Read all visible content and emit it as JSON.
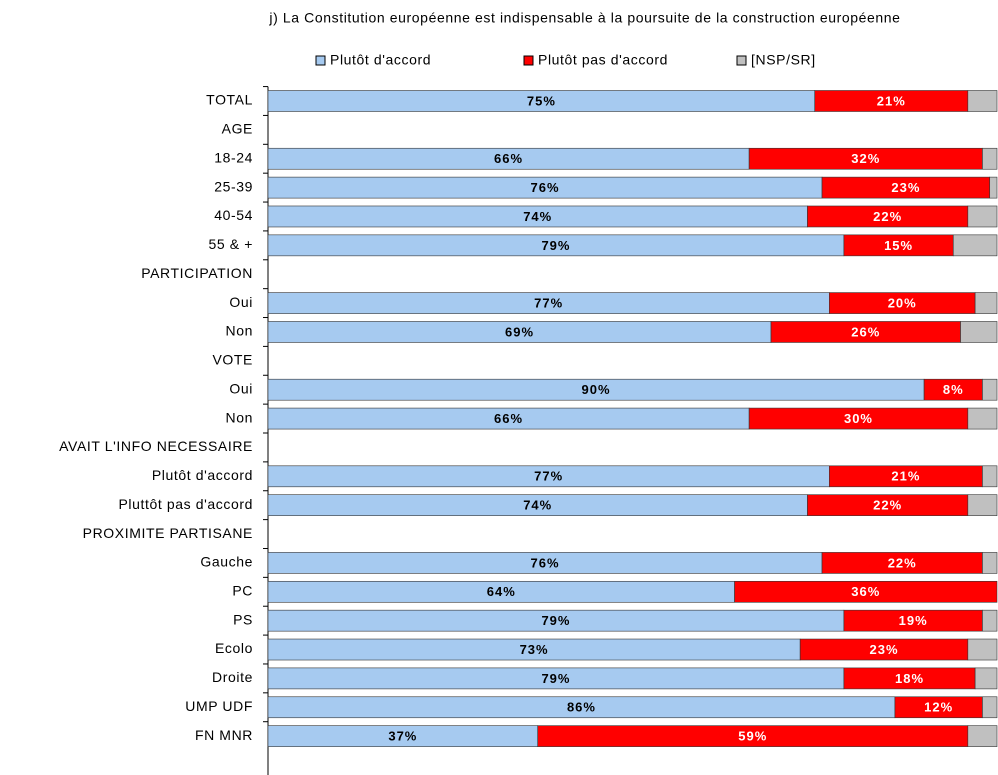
{
  "chart_data": {
    "type": "stacked_bar_horizontal",
    "title": "j) La Constitution européenne est indispensable à la poursuite de la construction européenne",
    "categories": [
      "TOTAL",
      "AGE",
      "18-24",
      "25-39",
      "40-54",
      "55 & +",
      "PARTICIPATION",
      "Oui",
      "Non",
      "VOTE",
      "Oui",
      "Non",
      "AVAIT L'INFO NECESSAIRE",
      "Plutôt d'accord",
      "Pluttôt pas d'accord",
      "PROXIMITE PARTISANE",
      "Gauche",
      "PC",
      "PS",
      "Ecolo",
      "Droite",
      "UMP UDF",
      "FN MNR"
    ],
    "xlim": [
      0,
      100
    ],
    "legend": "top",
    "series": [
      {
        "name": "Plutôt d'accord",
        "color": "#a6caf0",
        "values": [
          75,
          null,
          66,
          76,
          74,
          79,
          null,
          77,
          69,
          null,
          90,
          66,
          null,
          77,
          74,
          null,
          76,
          64,
          79,
          73,
          79,
          86,
          37
        ],
        "value_labels": [
          "75%",
          null,
          "66%",
          "76%",
          "74%",
          "79%",
          null,
          "77%",
          "69%",
          null,
          "90%",
          "66%",
          null,
          "77%",
          "74%",
          null,
          "76%",
          "64%",
          "79%",
          "73%",
          "79%",
          "86%",
          "37%"
        ]
      },
      {
        "name": "Plutôt pas d'accord",
        "color": "#ff0000",
        "values": [
          21,
          null,
          32,
          23,
          22,
          15,
          null,
          20,
          26,
          null,
          8,
          30,
          null,
          21,
          22,
          null,
          22,
          36,
          19,
          23,
          18,
          12,
          59
        ],
        "value_labels": [
          "21%",
          null,
          "32%",
          "23%",
          "22%",
          "15%",
          null,
          "20%",
          "26%",
          null,
          "8%",
          "30%",
          null,
          "21%",
          "22%",
          null,
          "22%",
          "36%",
          "19%",
          "23%",
          "18%",
          "12%",
          "59%"
        ]
      },
      {
        "name": "[NSP/SR]",
        "color": "#c0c0c0",
        "values": [
          4,
          null,
          2,
          1,
          4,
          6,
          null,
          3,
          5,
          null,
          2,
          4,
          null,
          2,
          4,
          null,
          2,
          0,
          2,
          4,
          3,
          2,
          4
        ]
      }
    ]
  }
}
